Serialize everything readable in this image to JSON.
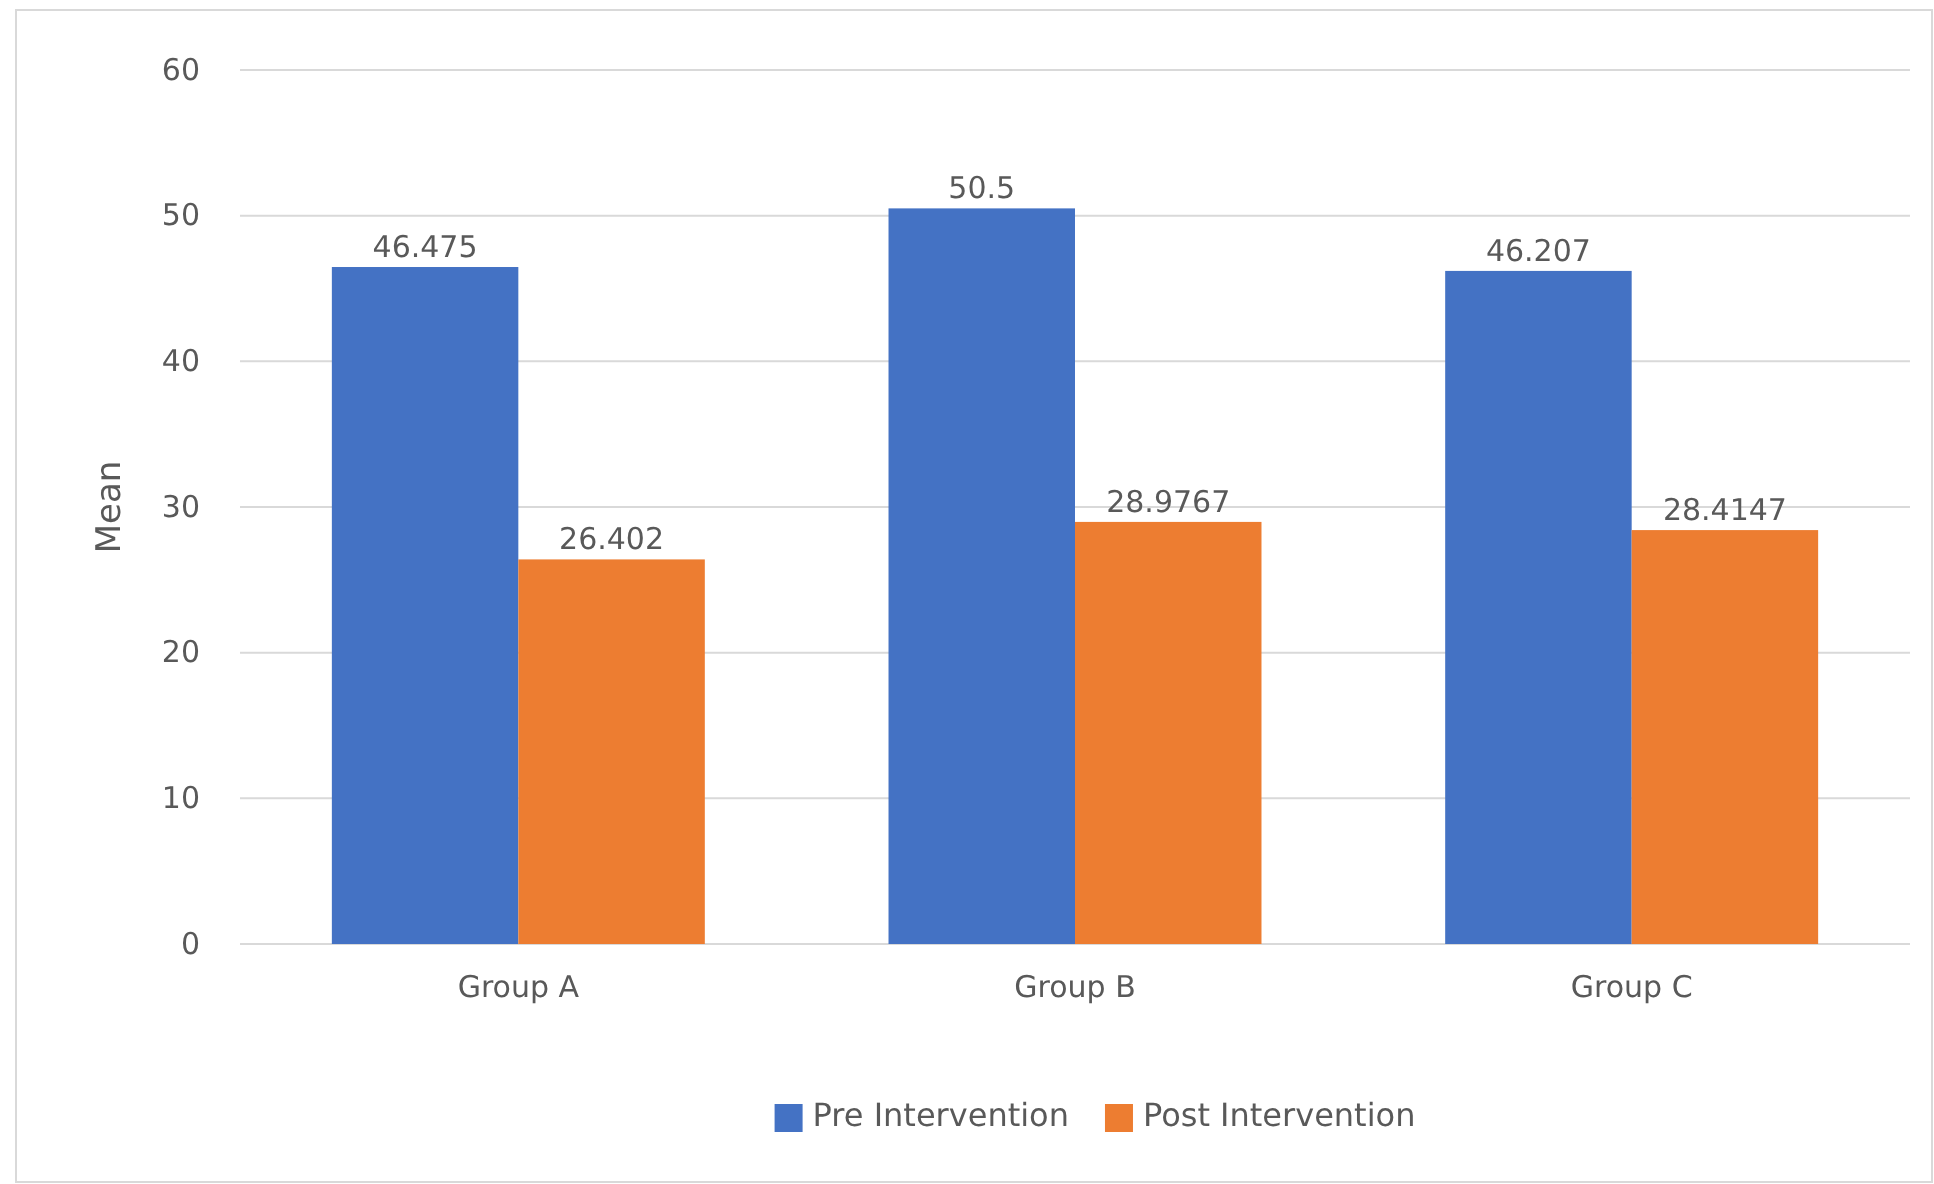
{
  "chart_data": {
    "type": "bar",
    "ylabel": "Mean",
    "categories": [
      "Group A",
      "Group B",
      "Group C"
    ],
    "series": [
      {
        "name": "Pre Intervention",
        "color": "#4472c4",
        "values": [
          46.475,
          50.5,
          46.207
        ]
      },
      {
        "name": "Post Intervention",
        "color": "#ed7d31",
        "values": [
          26.402,
          28.9767,
          28.4147
        ]
      }
    ],
    "ylim": [
      0,
      60
    ],
    "yticks": [
      0,
      10,
      20,
      30,
      40,
      50,
      60
    ],
    "grid": "y",
    "legend": "bottom",
    "data_labels": true
  }
}
